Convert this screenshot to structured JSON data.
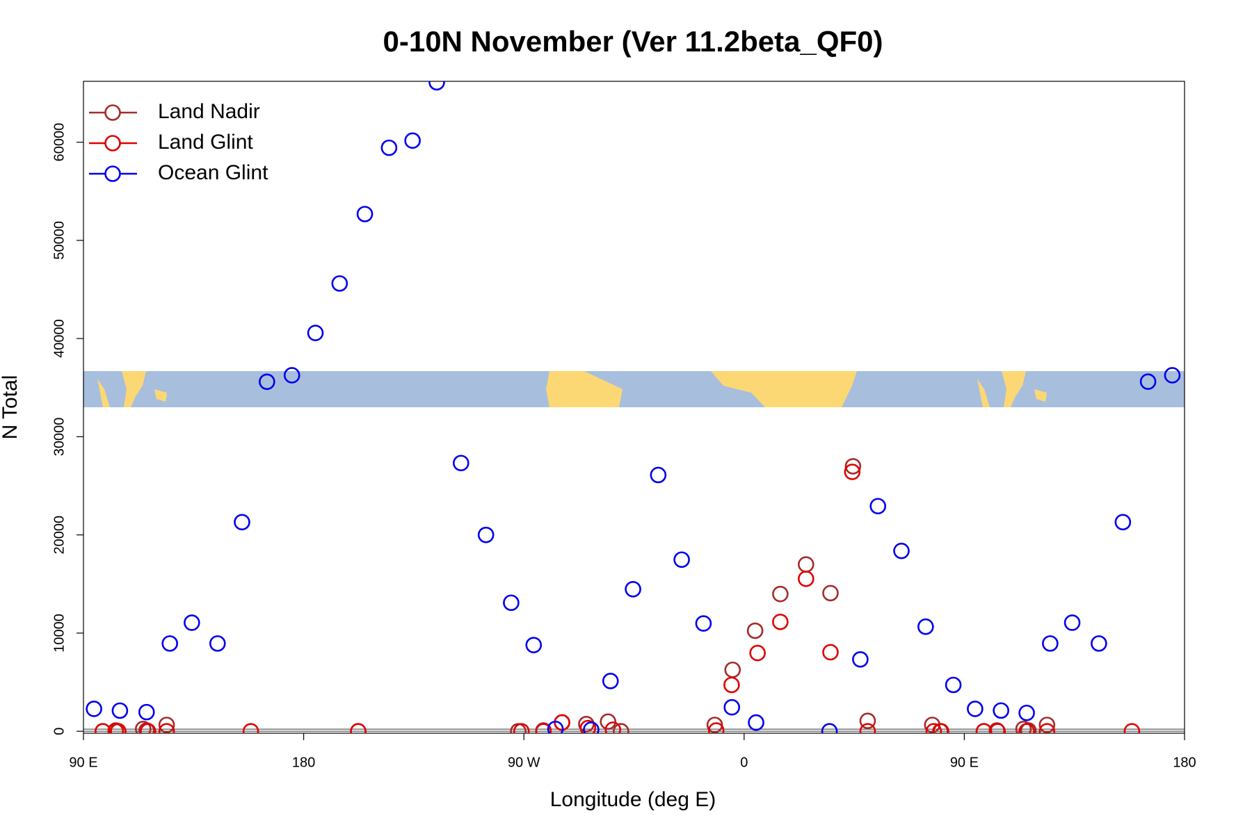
{
  "chart_data": {
    "type": "scatter",
    "title": "0-10N November (Ver 11.2beta_QF0)",
    "x_label": "Longitude (deg E)",
    "y_label": "N Total",
    "xlim": [
      90,
      540
    ],
    "ylim": [
      -200,
      66200
    ],
    "xticks": [
      {
        "value": 90,
        "label": "90 E"
      },
      180,
      {
        "value": 270,
        "label": "90 W"
      },
      {
        "value": 360,
        "label": "0"
      },
      {
        "value": 450,
        "label": "90 E"
      },
      {
        "value": 540,
        "label": "180"
      }
    ],
    "yticks": [
      0,
      10000,
      20000,
      30000,
      40000,
      50000,
      60000
    ],
    "legend": "top-left",
    "series": [
      {
        "name": "Land Nadir",
        "color": "#a52a2a",
        "x": [
          97.9,
          103.2,
          104.2,
          114.4,
          115.8,
          124,
          202.3,
          267.7,
          278,
          285.6,
          295.5,
          304.4,
          309.7,
          348,
          355.3,
          364.5,
          374.8,
          385.3,
          395.3,
          404.5,
          410.5,
          436.9,
          440.2,
          458,
          463.3,
          474.2,
          476.2,
          483.8
        ],
        "values": [
          0,
          80,
          0,
          240,
          80,
          650,
          0,
          0,
          80,
          900,
          730,
          980,
          0,
          650,
          6260,
          10240,
          13980,
          16990,
          14070,
          26990,
          1060,
          650,
          0,
          0,
          80,
          240,
          80,
          650
        ]
      },
      {
        "name": "Land Glint",
        "color": "#e00000",
        "x": [
          97.9,
          103.2,
          104.2,
          116.4,
          124,
          158.4,
          202.3,
          269,
          278,
          285.6,
          296.2,
          306.4,
          348.6,
          354.9,
          365.5,
          374.8,
          385.3,
          395.3,
          404.2,
          410.5,
          437.5,
          440.5,
          458,
          463.6,
          475.5,
          483.8,
          518.5
        ],
        "values": [
          0,
          0,
          0,
          0,
          0,
          0,
          0,
          0,
          0,
          890,
          330,
          160,
          80,
          4720,
          7970,
          11140,
          15530,
          8050,
          26420,
          0,
          0,
          0,
          0,
          0,
          0,
          0,
          0
        ]
      },
      {
        "name": "Ocean Glint",
        "color": "#0000ee",
        "x": [
          94.3,
          104.9,
          115.8,
          125.3,
          134.3,
          144.8,
          154.8,
          165,
          175.2,
          184.8,
          194.7,
          205,
          214.9,
          224.5,
          234.4,
          244.3,
          254.5,
          264.8,
          274,
          282.9,
          297.5,
          305.4,
          314.6,
          324.9,
          334.5,
          343.4,
          355,
          364.9,
          394.9,
          407.5,
          414.7,
          424.3,
          434.2,
          445.5,
          454.4,
          465,
          475.5,
          485.1,
          494.1,
          505,
          514.8,
          525.1,
          535
        ],
        "values": [
          2280,
          2100,
          1950,
          8940,
          11060,
          8940,
          21300,
          35600,
          36260,
          40570,
          45610,
          52680,
          59430,
          60160,
          66100,
          27320,
          20000,
          13090,
          8780,
          240,
          160,
          5120,
          14470,
          26100,
          17480,
          10980,
          2440,
          890,
          0,
          7320,
          22930,
          18370,
          10650,
          4720,
          2280,
          2110,
          1870,
          8940,
          11060,
          8940,
          21300,
          35610,
          36260
        ]
      }
    ]
  }
}
